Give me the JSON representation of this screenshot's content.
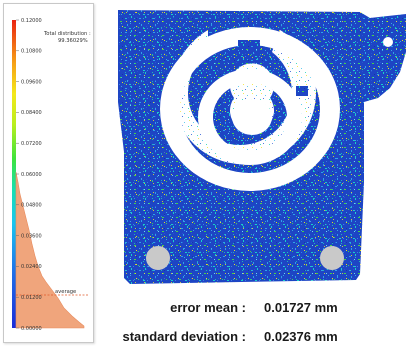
{
  "legend": {
    "title": "Total distribution :",
    "total_value": "99.36029%",
    "marker_label": "average",
    "ticks": [
      "0.12000",
      "0.10800",
      "0.09600",
      "0.08400",
      "0.07200",
      "0.06000",
      "0.04800",
      "0.03600",
      "0.02400",
      "0.01200",
      "0.00000"
    ]
  },
  "stats": {
    "mean_label": "error mean :",
    "mean_value": "0.01727 mm",
    "std_label": "standard deviation :",
    "std_value": "0.02376 mm"
  }
}
